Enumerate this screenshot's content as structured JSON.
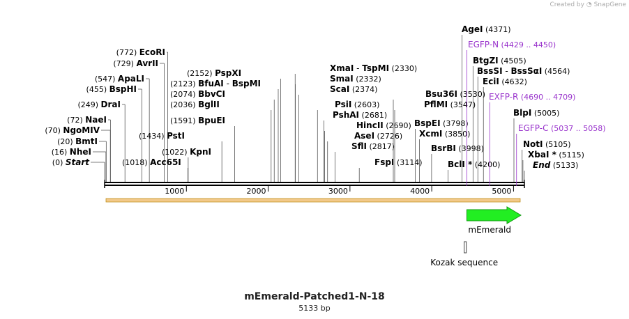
{
  "credit": {
    "prefix": "Created by",
    "brand": "SnapGene"
  },
  "plasmid": {
    "name": "mEmerald-Patched1-N-18",
    "length_label": "5133 bp",
    "length": 5133
  },
  "colors": {
    "feature_fill": "#22ee22",
    "primer": "#9933cc",
    "orf": "#f2c98a",
    "backbone": "#000000"
  },
  "ticks": [
    {
      "label": "1000",
      "value": 1000
    },
    {
      "label": "2000",
      "value": 2000
    },
    {
      "label": "3000",
      "value": 3000
    },
    {
      "label": "4000",
      "value": 4000
    },
    {
      "label": "5000",
      "value": 5000
    }
  ],
  "sites_left": [
    {
      "name": "Start",
      "pos": "(0)",
      "bp": 0,
      "italic": true
    },
    {
      "name": "NheI",
      "pos": "(16)",
      "bp": 16
    },
    {
      "name": "BmtI",
      "pos": "(20)",
      "bp": 20
    },
    {
      "name": "NgoMIV",
      "pos": "(70)",
      "bp": 70
    },
    {
      "name": "NaeI",
      "pos": "(72)",
      "bp": 72
    },
    {
      "name": "DraI",
      "pos": "(249)",
      "bp": 249
    },
    {
      "name": "BspHI",
      "pos": "(455)",
      "bp": 455
    },
    {
      "name": "ApaLI",
      "pos": "(547)",
      "bp": 547
    },
    {
      "name": "AvrII",
      "pos": "(729)",
      "bp": 729
    },
    {
      "name": "EcoRI",
      "pos": "(772)",
      "bp": 772
    }
  ],
  "sites_mid": [
    {
      "name": "Acc65I",
      "pos": "(1018)",
      "bp": 1018,
      "pos_side": "left"
    },
    {
      "name": "KpnI",
      "pos": "(1022)",
      "bp": 1022,
      "pos_side": "left"
    },
    {
      "name": "PstI",
      "pos": "(1434)",
      "bp": 1434,
      "pos_side": "left"
    },
    {
      "name": "BpuEI",
      "pos": "(1591)",
      "bp": 1591,
      "pos_side": "left"
    },
    {
      "name": "BglII",
      "pos": "(2036)",
      "bp": 2036,
      "pos_side": "left"
    },
    {
      "name": "BbvCI",
      "pos": "(2074)",
      "bp": 2074,
      "pos_side": "left"
    },
    {
      "name": "BfuAI",
      "name2": "BspMI",
      "pos": "(2123)",
      "bp": 2123,
      "pos_side": "left"
    },
    {
      "name": "PspXI",
      "pos": "(2152)",
      "bp": 2152,
      "pos_side": "left"
    },
    {
      "name": "XmaI",
      "name2": "TspMI",
      "pos": "(2330)",
      "bp": 2330,
      "pos_side": "right"
    },
    {
      "name": "SmaI",
      "pos": "(2332)",
      "bp": 2332,
      "pos_side": "right"
    },
    {
      "name": "ScaI",
      "pos": "(2374)",
      "bp": 2374,
      "pos_side": "right"
    },
    {
      "name": "PsiI",
      "pos": "(2603)",
      "bp": 2603,
      "pos_side": "right"
    },
    {
      "name": "PshAI",
      "pos": "(2681)",
      "bp": 2681,
      "pos_side": "right"
    },
    {
      "name": "HincII",
      "pos": "(2690)",
      "bp": 2690,
      "pos_side": "right"
    },
    {
      "name": "AseI",
      "pos": "(2726)",
      "bp": 2726,
      "pos_side": "right"
    },
    {
      "name": "SflI",
      "pos": "(2817)",
      "bp": 2817,
      "pos_side": "right"
    },
    {
      "name": "FspI",
      "pos": "(3114)",
      "bp": 3114,
      "pos_side": "right"
    },
    {
      "name": "Bsu36I",
      "pos": "(3530)",
      "bp": 3530,
      "pos_side": "right"
    },
    {
      "name": "PflMI",
      "pos": "(3547)",
      "bp": 3547,
      "pos_side": "right"
    }
  ],
  "sites_right": [
    {
      "name": "BspEI",
      "pos": "(3798)",
      "bp": 3798
    },
    {
      "name": "XcmI",
      "pos": "(3850)",
      "bp": 3850
    },
    {
      "name": "BsrBI",
      "pos": "(3998)",
      "bp": 3998
    },
    {
      "name": "BclI *",
      "pos": "(4200)",
      "bp": 4200
    },
    {
      "name": "AgeI",
      "pos": "(4371)",
      "bp": 4371
    },
    {
      "name": "BtgZI",
      "pos": "(4505)",
      "bp": 4505
    },
    {
      "name": "BssSI",
      "name2": "BssSαI",
      "pos": "(4564)",
      "bp": 4564
    },
    {
      "name": "EciI",
      "pos": "(4632)",
      "bp": 4632
    },
    {
      "name": "BlpI",
      "pos": "(5005)",
      "bp": 5005
    },
    {
      "name": "NotI",
      "pos": "(5105)",
      "bp": 5105
    },
    {
      "name": "XbaI *",
      "pos": "(5115)",
      "bp": 5115
    },
    {
      "name": "End",
      "pos": "(5133)",
      "bp": 5133,
      "italic": true
    }
  ],
  "primers": [
    {
      "name": "EGFP-N",
      "range": "(4429 .. 4450)",
      "bp": 4429
    },
    {
      "name": "EXFP-R",
      "range": "(4690 .. 4709)",
      "bp": 4709
    },
    {
      "name": "EGFP-C",
      "range": "(5037 .. 5058)",
      "bp": 5037
    }
  ],
  "features": [
    {
      "name": "mEmerald",
      "start": 4429,
      "end": 5148,
      "type": "arrow"
    },
    {
      "name": "Kozak sequence",
      "start": 4414,
      "end": 4428,
      "type": "box"
    }
  ]
}
